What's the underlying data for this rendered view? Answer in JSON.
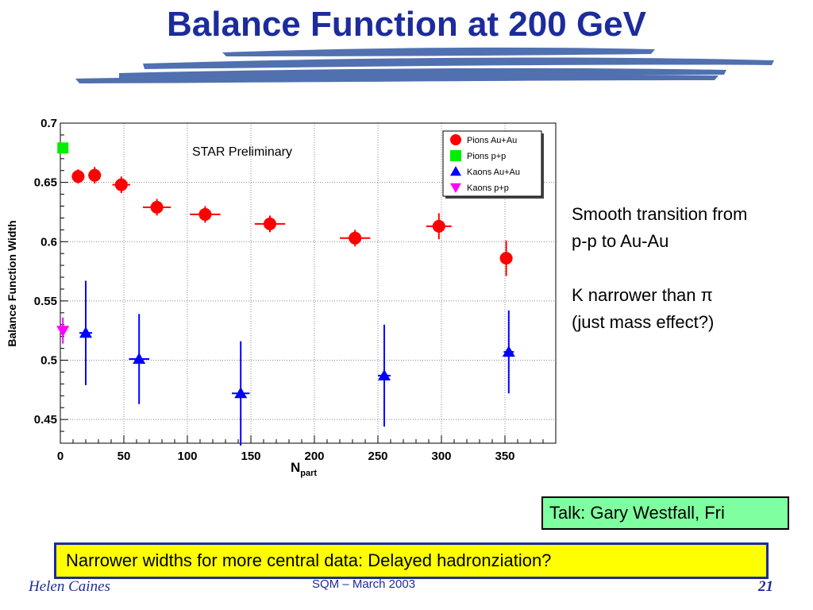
{
  "slide": {
    "title": "Balance Function at 200 GeV",
    "annotation_1": "Smooth transition from",
    "annotation_2": "p-p to Au-Au",
    "annotation_3": "K narrower than π",
    "annotation_4": "(just mass effect?)",
    "talk_box": "Talk: Gary Westfall, Fri",
    "note_box": "Narrower widths for more central data: Delayed hadronziation?",
    "footer_author": "Helen Caines",
    "footer_center": "SQM  – March 2003",
    "page_number": "21",
    "title_color": "#1c2c9c",
    "brush_color": "#5070b0"
  },
  "chart_data": {
    "type": "scatter",
    "title": "",
    "annotation": "STAR Preliminary",
    "xlabel": "N",
    "xlabel_subscript": "part",
    "ylabel": "Balance Function Width",
    "xlim": [
      0,
      390
    ],
    "ylim": [
      0.43,
      0.7
    ],
    "x_ticks": [
      0,
      50,
      100,
      150,
      200,
      250,
      300,
      350
    ],
    "x_tick_labels": [
      "0",
      "50",
      "100",
      "150",
      "200",
      "250",
      "300",
      "350"
    ],
    "y_ticks": [
      0.45,
      0.5,
      0.55,
      0.6,
      0.65,
      0.7
    ],
    "y_tick_labels": [
      "0.45",
      "0.5",
      "0.55",
      "0.6",
      "0.65",
      "0.7"
    ],
    "grid": true,
    "legend_position": "top-right",
    "series": [
      {
        "name": "Pions Au+Au",
        "marker": "circle",
        "color": "#ff0000",
        "points": [
          {
            "x": 14,
            "y": 0.655,
            "xerr": 5,
            "yerr": 0.006
          },
          {
            "x": 27,
            "y": 0.656,
            "xerr": 5,
            "yerr": 0.007
          },
          {
            "x": 48,
            "y": 0.648,
            "xerr": 7,
            "yerr": 0.007
          },
          {
            "x": 76,
            "y": 0.629,
            "xerr": 11,
            "yerr": 0.007
          },
          {
            "x": 114,
            "y": 0.623,
            "xerr": 12,
            "yerr": 0.007
          },
          {
            "x": 165,
            "y": 0.615,
            "xerr": 12,
            "yerr": 0.007
          },
          {
            "x": 232,
            "y": 0.603,
            "xerr": 12,
            "yerr": 0.007
          },
          {
            "x": 298,
            "y": 0.613,
            "xerr": 10,
            "yerr": 0.011
          },
          {
            "x": 351,
            "y": 0.586,
            "xerr": 5,
            "yerr": 0.015
          }
        ]
      },
      {
        "name": "Pions p+p",
        "marker": "square",
        "color": "#00ee00",
        "points": [
          {
            "x": 2,
            "y": 0.679,
            "xerr": 0,
            "yerr": 0.0
          }
        ]
      },
      {
        "name": "Kaons Au+Au",
        "marker": "triangle-up",
        "color": "#0000ff",
        "points": [
          {
            "x": 20,
            "y": 0.523,
            "xerr": 5,
            "yerr": 0.044
          },
          {
            "x": 62,
            "y": 0.501,
            "xerr": 8,
            "yerr": 0.038
          },
          {
            "x": 142,
            "y": 0.472,
            "xerr": 7,
            "yerr": 0.044
          },
          {
            "x": 255,
            "y": 0.487,
            "xerr": 5,
            "yerr": 0.043
          },
          {
            "x": 353,
            "y": 0.507,
            "xerr": 4,
            "yerr": 0.035
          }
        ]
      },
      {
        "name": "Kaons p+p",
        "marker": "triangle-down",
        "color": "#ff00ff",
        "points": [
          {
            "x": 2,
            "y": 0.525,
            "xerr": 0,
            "yerr": 0.011
          }
        ]
      }
    ]
  }
}
